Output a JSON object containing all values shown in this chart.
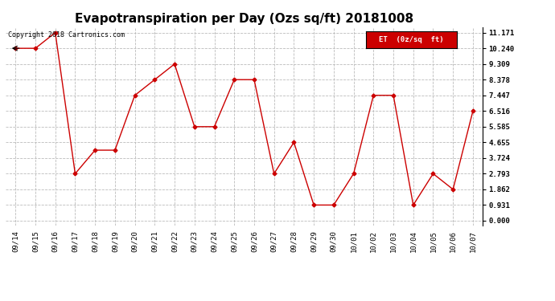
{
  "title": "Evapotranspiration per Day (Ozs sq/ft) 20181008",
  "copyright": "Copyright 2018 Cartronics.com",
  "legend_label": "ET  (0z/sq  ft)",
  "legend_bg": "#cc0000",
  "legend_text_color": "#ffffff",
  "dates": [
    "09/14",
    "09/15",
    "09/16",
    "09/17",
    "09/18",
    "09/19",
    "09/20",
    "09/21",
    "09/22",
    "09/23",
    "09/24",
    "09/25",
    "09/26",
    "09/27",
    "09/28",
    "09/29",
    "09/30",
    "10/01",
    "10/02",
    "10/03",
    "10/04",
    "10/05",
    "10/06",
    "10/07"
  ],
  "values": [
    10.24,
    10.24,
    11.171,
    2.793,
    4.19,
    4.19,
    7.447,
    8.378,
    9.309,
    5.585,
    5.585,
    8.378,
    8.378,
    2.793,
    4.655,
    0.931,
    0.931,
    2.793,
    7.447,
    7.447,
    0.931,
    2.793,
    1.862,
    6.516
  ],
  "yticks": [
    0.0,
    0.931,
    1.862,
    2.793,
    3.724,
    4.655,
    5.585,
    6.516,
    7.447,
    8.378,
    9.309,
    10.24,
    11.171
  ],
  "ylim": [
    0.0,
    11.171
  ],
  "line_color": "#cc0000",
  "marker": "D",
  "marker_size": 2.5,
  "line_width": 1.0,
  "grid_color": "#bbbbbb",
  "grid_style": "--",
  "bg_color": "#ffffff",
  "title_fontsize": 11,
  "tick_fontsize": 6.5,
  "copyright_fontsize": 6.0,
  "legend_fontsize": 6.5
}
